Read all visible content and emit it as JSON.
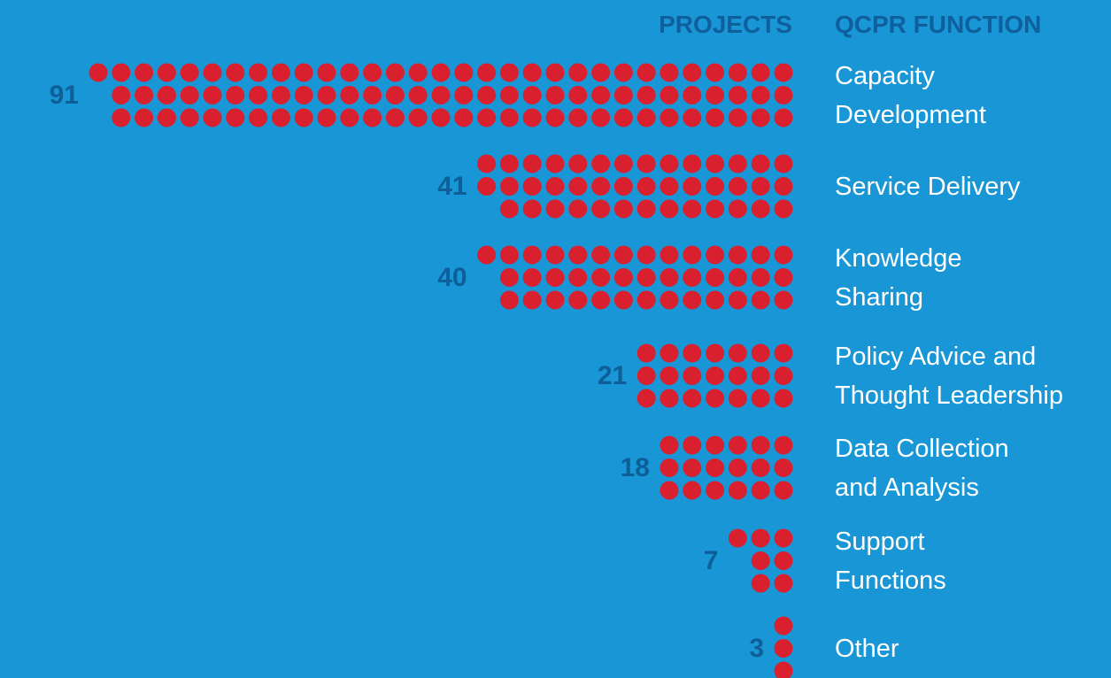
{
  "chart_data": {
    "type": "dot",
    "value_header": "PROJECTS",
    "category_header": "QCPR FUNCTION",
    "categories": [
      "Capacity\nDevelopment",
      "Service Delivery",
      "Knowledge\nSharing",
      "Policy Advice and\nThought Leadership",
      "Data Collection\nand Analysis",
      "Support\nFunctions",
      "Other"
    ],
    "values": [
      91,
      41,
      40,
      21,
      18,
      7,
      3
    ],
    "color": "#d9202e"
  }
}
